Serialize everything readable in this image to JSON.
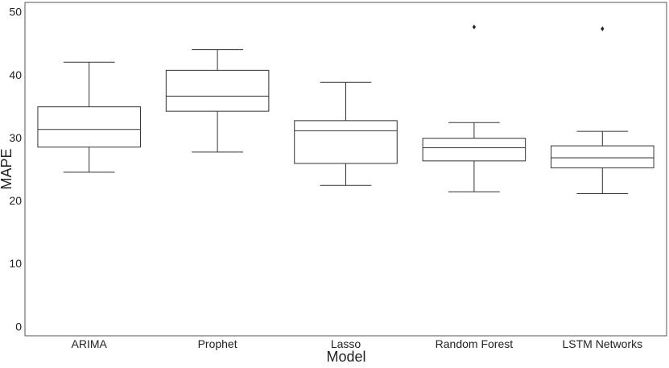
{
  "chart_data": {
    "type": "box",
    "title": "",
    "xlabel": "Model",
    "ylabel": "MAPE",
    "ylim": [
      -1.5,
      51.5
    ],
    "yticks": [
      0,
      10,
      20,
      30,
      40,
      50
    ],
    "categories": [
      "ARIMA",
      "Prophet",
      "Lasso",
      "Random Forest",
      "LSTM Networks"
    ],
    "boxes": [
      {
        "category": "ARIMA",
        "whisker_low": 24.5,
        "q1": 28.5,
        "median": 31.3,
        "q3": 34.9,
        "whisker_high": 42.0,
        "outliers": []
      },
      {
        "category": "Prophet",
        "whisker_low": 27.7,
        "q1": 34.2,
        "median": 36.6,
        "q3": 40.7,
        "whisker_high": 44.0,
        "outliers": []
      },
      {
        "category": "Lasso",
        "whisker_low": 22.4,
        "q1": 25.9,
        "median": 31.1,
        "q3": 32.7,
        "whisker_high": 38.8,
        "outliers": []
      },
      {
        "category": "Random Forest",
        "whisker_low": 21.4,
        "q1": 26.3,
        "median": 28.4,
        "q3": 29.9,
        "whisker_high": 32.4,
        "outliers": [
          47.6
        ]
      },
      {
        "category": "LSTM Networks",
        "whisker_low": 21.1,
        "q1": 25.2,
        "median": 26.8,
        "q3": 28.7,
        "whisker_high": 31.0,
        "outliers": [
          47.3
        ]
      }
    ],
    "grid": false,
    "legend": "none",
    "colors": {
      "box_fill": "#ffffff",
      "line": "#333333",
      "axis": "#555555"
    }
  }
}
